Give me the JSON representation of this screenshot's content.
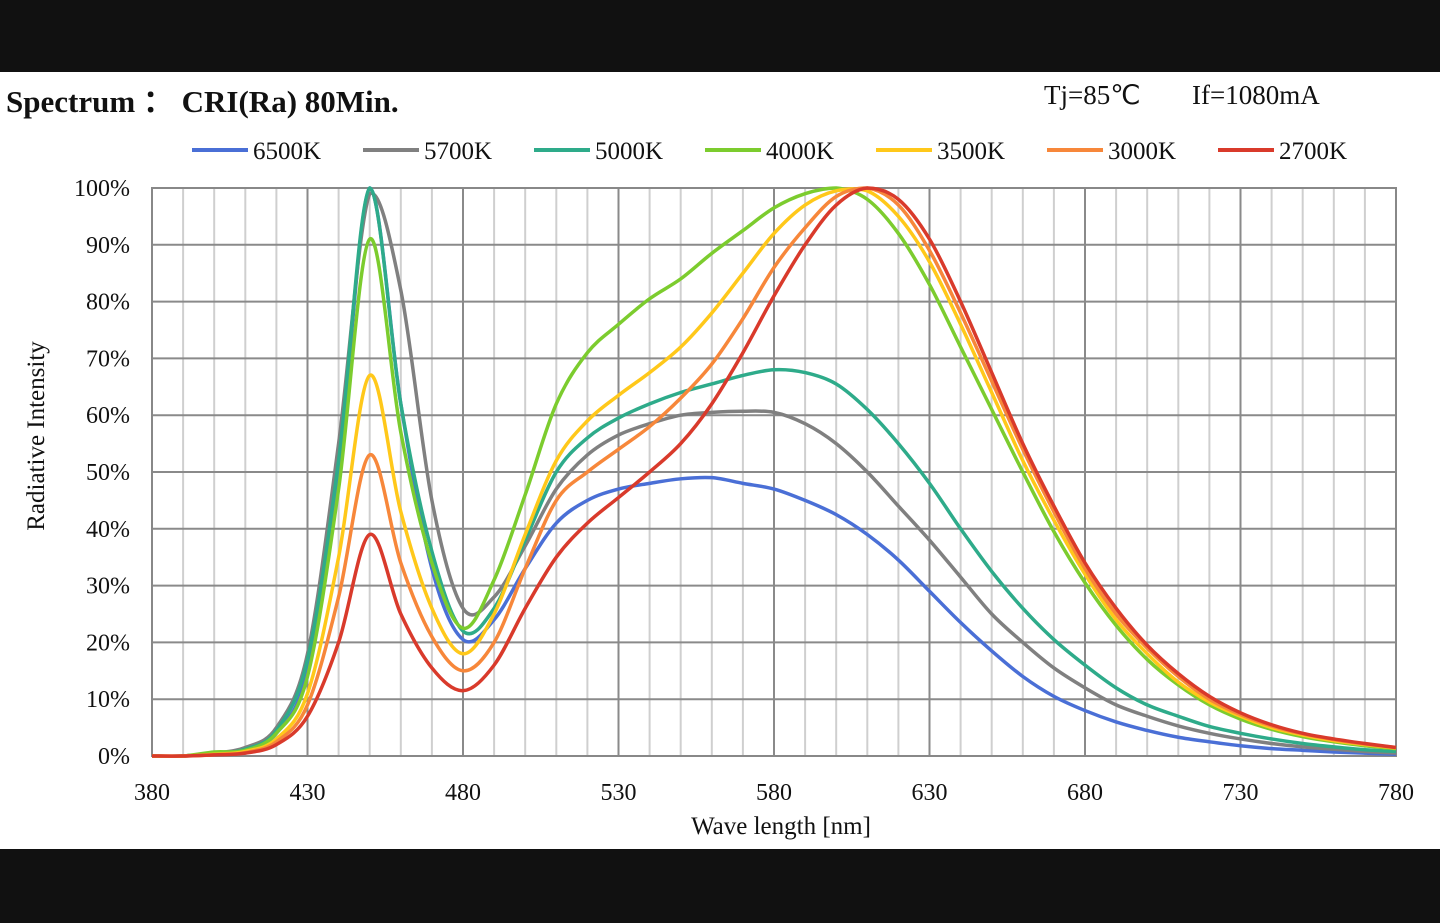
{
  "header": {
    "title": "Spectrum ： CRI(Ra) 80Min.",
    "tj": "Tj=85℃",
    "if": "If=1080mA"
  },
  "chart_data": {
    "type": "line",
    "title": "Spectrum ： CRI(Ra) 80Min.",
    "xlabel": "Wave length [nm]",
    "ylabel": "Radiative Intensity",
    "xlim": [
      380,
      780
    ],
    "ylim": [
      0,
      100
    ],
    "xticks": [
      "380",
      "430",
      "480",
      "530",
      "580",
      "630",
      "680",
      "730",
      "780"
    ],
    "yticks": [
      "0%",
      "10%",
      "20%",
      "30%",
      "40%",
      "50%",
      "60%",
      "70%",
      "80%",
      "90%",
      "100%"
    ],
    "grid": true,
    "legend": "top",
    "x": [
      380,
      390,
      400,
      410,
      420,
      430,
      440,
      450,
      460,
      470,
      480,
      490,
      500,
      510,
      520,
      530,
      540,
      550,
      560,
      570,
      580,
      590,
      600,
      610,
      620,
      630,
      640,
      650,
      660,
      670,
      680,
      690,
      700,
      710,
      720,
      730,
      740,
      750,
      760,
      770,
      780
    ],
    "series": [
      {
        "name": "6500K",
        "color": "#4a6fd6",
        "values": [
          0,
          0,
          0.5,
          1,
          4,
          15,
          50,
          100,
          62,
          33,
          20.5,
          24,
          33,
          41,
          45,
          47,
          48,
          48.8,
          49,
          48,
          47,
          45,
          42.5,
          39,
          34.5,
          29,
          23.5,
          18.5,
          14,
          10.5,
          8,
          6,
          4.5,
          3.3,
          2.5,
          1.8,
          1.3,
          1,
          0.7,
          0.5,
          0.3
        ]
      },
      {
        "name": "5700K",
        "color": "#808080",
        "values": [
          0,
          0,
          0.5,
          1.5,
          5,
          18,
          55,
          99,
          82,
          45,
          26,
          28,
          37,
          47,
          53,
          56.5,
          58.5,
          60,
          60.5,
          60.7,
          60.5,
          58.5,
          55,
          50,
          44,
          38,
          31.5,
          25,
          20,
          15.5,
          12,
          9,
          7,
          5.3,
          4,
          3,
          2.2,
          1.6,
          1.2,
          0.8,
          0.5
        ]
      },
      {
        "name": "5000K",
        "color": "#2eab8a",
        "values": [
          0,
          0,
          0.5,
          1.2,
          4.5,
          17,
          52,
          100,
          62,
          36,
          22,
          26,
          38,
          50,
          56,
          59.5,
          62,
          64,
          65.5,
          67,
          68,
          67.5,
          65.5,
          61,
          55,
          48,
          40,
          32.5,
          26,
          20.5,
          16,
          12,
          9,
          7,
          5.2,
          4,
          3,
          2.2,
          1.6,
          1.1,
          0.8
        ]
      },
      {
        "name": "4000K",
        "color": "#7ccc2e",
        "values": [
          0,
          0,
          0.7,
          1,
          4,
          14,
          47,
          91,
          57,
          34,
          22.5,
          31,
          46,
          62,
          71,
          76,
          80.5,
          84,
          88.5,
          92.5,
          96.5,
          99,
          100,
          98,
          92,
          83,
          72,
          61,
          50,
          39.5,
          30.5,
          23,
          17,
          12.5,
          9,
          6.5,
          4.7,
          3.4,
          2.5,
          1.8,
          1.3
        ]
      },
      {
        "name": "3500K",
        "color": "#ffc81a",
        "values": [
          0,
          0,
          0.3,
          0.8,
          3,
          11,
          35,
          67,
          43,
          26,
          18,
          25,
          39,
          52,
          59,
          63.5,
          67.5,
          72,
          78,
          85,
          92,
          97,
          99.5,
          99.5,
          95,
          87,
          76,
          64,
          52,
          41.5,
          32,
          24,
          18,
          13,
          9.5,
          7,
          5,
          3.7,
          2.7,
          2,
          1.4
        ]
      },
      {
        "name": "3000K",
        "color": "#f7873a",
        "values": [
          0,
          0,
          0.2,
          0.6,
          2.5,
          9,
          28,
          53,
          34,
          21,
          15,
          20,
          33,
          45,
          50,
          54,
          58,
          63,
          69,
          77,
          86,
          93,
          98.5,
          100,
          97,
          89,
          78,
          66,
          54,
          43,
          33,
          25,
          19,
          14,
          10,
          7.3,
          5.3,
          3.9,
          2.9,
          2.1,
          1.5
        ]
      },
      {
        "name": "2700K",
        "color": "#d93a2b",
        "values": [
          0,
          0,
          0.2,
          0.5,
          2,
          7,
          20,
          39,
          25,
          15.5,
          11.5,
          16,
          26,
          35,
          41,
          45.5,
          50,
          55,
          62,
          71,
          81,
          90,
          97,
          100,
          98,
          91,
          80,
          67.5,
          55,
          44,
          34,
          26,
          19.5,
          14.5,
          10.5,
          7.6,
          5.5,
          4,
          3,
          2.2,
          1.5
        ]
      }
    ]
  }
}
